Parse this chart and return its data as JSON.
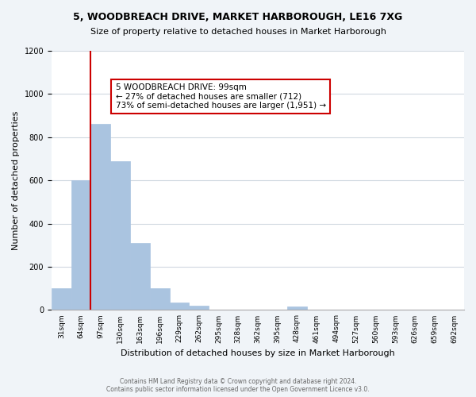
{
  "title": "5, WOODBREACH DRIVE, MARKET HARBOROUGH, LE16 7XG",
  "subtitle": "Size of property relative to detached houses in Market Harborough",
  "xlabel": "Distribution of detached houses by size in Market Harborough",
  "ylabel": "Number of detached properties",
  "bar_color": "#aac4e0",
  "background_color": "#f0f4f8",
  "plot_bg_color": "#ffffff",
  "grid_color": "#d0d8e0",
  "bins": [
    "31sqm",
    "64sqm",
    "97sqm",
    "130sqm",
    "163sqm",
    "196sqm",
    "229sqm",
    "262sqm",
    "295sqm",
    "328sqm",
    "362sqm",
    "395sqm",
    "428sqm",
    "461sqm",
    "494sqm",
    "527sqm",
    "560sqm",
    "593sqm",
    "626sqm",
    "659sqm",
    "692sqm"
  ],
  "values": [
    100,
    600,
    860,
    690,
    310,
    100,
    35,
    20,
    0,
    0,
    0,
    0,
    15,
    0,
    0,
    0,
    0,
    0,
    0,
    0,
    0
  ],
  "ylim": [
    0,
    1200
  ],
  "yticks": [
    0,
    200,
    400,
    600,
    800,
    1000,
    1200
  ],
  "property_line_x": 1.5,
  "annotation_line1": "5 WOODBREACH DRIVE: 99sqm",
  "annotation_line2": "← 27% of detached houses are smaller (712)",
  "annotation_line3": "73% of semi-detached houses are larger (1,951) →",
  "annotation_box_color": "#ffffff",
  "annotation_box_edge_color": "#cc0000",
  "property_line_color": "#cc0000",
  "footer_line1": "Contains HM Land Registry data © Crown copyright and database right 2024.",
  "footer_line2": "Contains public sector information licensed under the Open Government Licence v3.0."
}
